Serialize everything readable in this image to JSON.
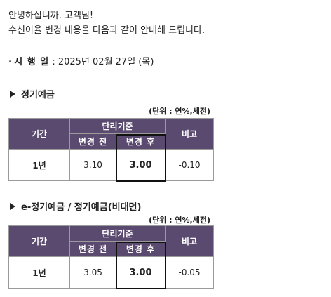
{
  "notice": {
    "greeting": "안녕하십니까. 고객님!",
    "intro": "수신이율 변경 내용을 다음과 같이 안내해 드립니다.",
    "effective_label": "시 행 일",
    "effective_date": " : 2025년 02월 27일 (목)"
  },
  "tables": [
    {
      "title": "정기예금",
      "unit": "(단위 : 연%,세전)",
      "head_term": "기간",
      "head_group": "단리기준",
      "head_before": "변경 전",
      "head_after": "변경 후",
      "head_note": "비고",
      "row": {
        "term": "1년",
        "before": "3.10",
        "after": "3.00",
        "note": "-0.10"
      }
    },
    {
      "title": "e-정기예금 / 정기예금(비대면)",
      "unit": "(단위 : 연%,세전)",
      "head_term": "기간",
      "head_group": "단리기준",
      "head_before": "변경 전",
      "head_after": "변경 후",
      "head_note": "비고",
      "row": {
        "term": "1년",
        "before": "3.05",
        "after": "3.00",
        "note": "-0.05"
      }
    }
  ]
}
